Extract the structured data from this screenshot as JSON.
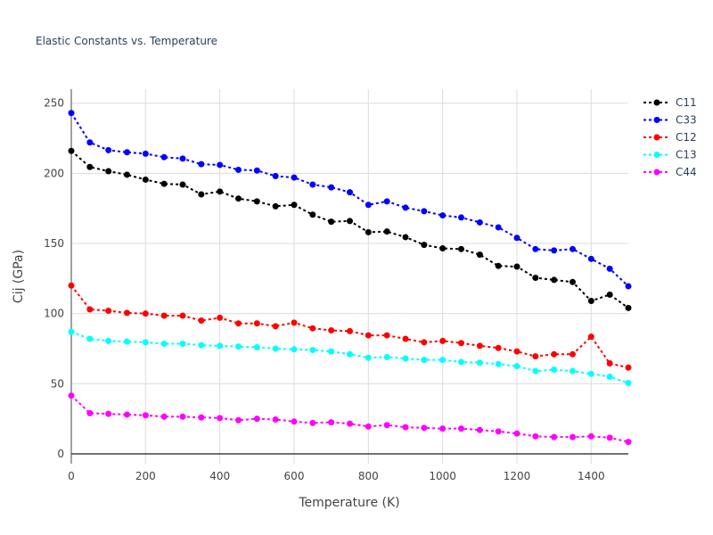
{
  "chart_data": {
    "type": "line",
    "title": "Elastic Constants vs. Temperature",
    "xlabel": "Temperature (K)",
    "ylabel": "Cij (GPa)",
    "xlim": [
      0,
      1500
    ],
    "ylim": [
      -7,
      260
    ],
    "xticks": [
      0,
      200,
      400,
      600,
      800,
      1000,
      1200,
      1400
    ],
    "yticks": [
      0,
      50,
      100,
      150,
      200,
      250
    ],
    "grid": true,
    "legend_position": "top-right",
    "x": [
      0,
      50,
      100,
      150,
      200,
      250,
      300,
      350,
      400,
      450,
      500,
      550,
      600,
      650,
      700,
      750,
      800,
      850,
      900,
      950,
      1000,
      1050,
      1100,
      1150,
      1200,
      1250,
      1300,
      1350,
      1400,
      1450,
      1500
    ],
    "series": [
      {
        "name": "C11",
        "color": "#000000",
        "values": [
          216,
          204.5,
          201.5,
          199,
          195.5,
          192.5,
          192,
          185,
          187,
          182,
          180,
          176.5,
          177.5,
          170.5,
          165.5,
          166,
          158,
          158.5,
          154.5,
          149,
          146.5,
          146,
          142,
          134,
          133.5,
          125.5,
          124,
          122.5,
          109,
          113.5,
          104
        ]
      },
      {
        "name": "C33",
        "color": "#0000ff",
        "values": [
          243,
          222,
          216.5,
          215,
          214,
          211.5,
          210.5,
          206.5,
          206,
          202.5,
          202,
          198,
          197,
          192,
          190,
          186.5,
          177.5,
          180,
          175.5,
          173,
          170,
          168.5,
          165,
          161.5,
          154,
          146,
          145,
          146,
          139,
          132,
          119.5
        ]
      },
      {
        "name": "C12",
        "color": "#ff0000",
        "values": [
          120,
          103,
          102,
          100.5,
          100,
          98.5,
          98.5,
          95,
          97,
          93,
          93,
          91,
          93.5,
          89.5,
          88,
          87.5,
          84.5,
          84.5,
          82,
          79.5,
          80.5,
          79,
          77,
          75.5,
          73,
          69.5,
          71,
          71,
          83.5,
          64.5,
          61.5
        ]
      },
      {
        "name": "C13",
        "color": "#00ffff",
        "values": [
          87,
          82,
          80.5,
          80,
          79.5,
          78.5,
          78.5,
          77.5,
          77,
          76.5,
          76,
          75,
          74.5,
          74,
          73,
          71,
          68.5,
          69,
          68,
          67,
          67,
          65.5,
          65,
          64,
          62.5,
          59,
          60,
          59,
          57,
          55,
          50.5
        ]
      },
      {
        "name": "C44",
        "color": "#ff00ff",
        "values": [
          41.5,
          29,
          28.5,
          28,
          27.5,
          26.5,
          26.5,
          26,
          25.5,
          24,
          25,
          24.5,
          23,
          22,
          22.5,
          21.5,
          19.5,
          20.5,
          19,
          18.5,
          18,
          18,
          17,
          16,
          14.5,
          12.5,
          12,
          12,
          12.5,
          11.5,
          8.5
        ]
      }
    ]
  }
}
